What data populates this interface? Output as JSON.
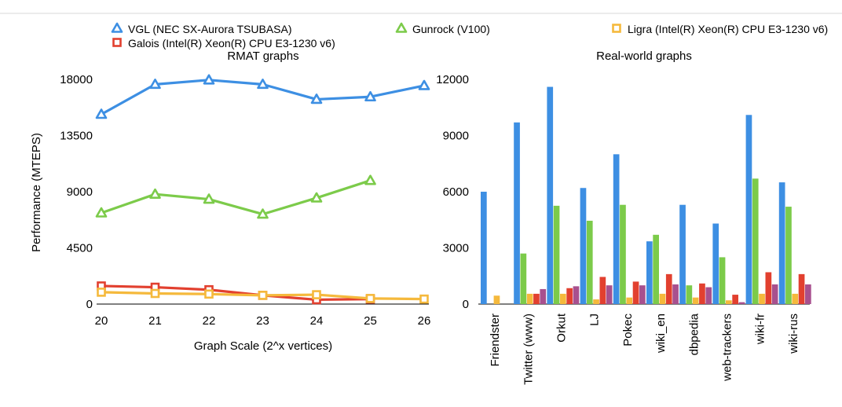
{
  "legend": {
    "items": [
      {
        "label": "VGL (NEC SX-Aurora TSUBASA)",
        "color": "#3d8fe3",
        "marker": "triangle"
      },
      {
        "label": "Gunrock (V100)",
        "color": "#7ccb4a",
        "marker": "triangle"
      },
      {
        "label": "Ligra (Intel(R) Xeon(R) CPU E3-1230 v6)",
        "color": "#f5b93c",
        "marker": "square"
      },
      {
        "label": "Galois (Intel(R) Xeon(R) CPU E3-1230 v6)",
        "color": "#e2402f",
        "marker": "square"
      }
    ]
  },
  "chart_data": [
    {
      "type": "line",
      "title": "RMAT graphs",
      "xlabel": "Graph Scale (2^x vertices)",
      "ylabel": "Performance (MTEPS)",
      "x": [
        20,
        21,
        22,
        23,
        24,
        25,
        26
      ],
      "xticks": [
        "20",
        "21",
        "22",
        "23",
        "24",
        "25",
        "26"
      ],
      "ylim": [
        0,
        18000
      ],
      "yticks": [
        "0",
        "4500",
        "9000",
        "13500",
        "18000"
      ],
      "grid": false,
      "series": [
        {
          "name": "VGL (NEC SX-Aurora TSUBASA)",
          "color": "#3d8fe3",
          "marker": "triangle",
          "values": [
            15200,
            17600,
            17950,
            17600,
            16400,
            16600,
            17500
          ]
        },
        {
          "name": "Gunrock (V100)",
          "color": "#7ccb4a",
          "marker": "triangle",
          "values": [
            7300,
            8800,
            8400,
            7200,
            8500,
            9900,
            null
          ]
        },
        {
          "name": "Galois (Intel(R) Xeon(R) CPU E3-1230 v6)",
          "color": "#e2402f",
          "marker": "square",
          "values": [
            1450,
            1350,
            1150,
            700,
            350,
            400,
            null
          ]
        },
        {
          "name": "Ligra (Intel(R) Xeon(R) CPU E3-1230 v6)",
          "color": "#f5b93c",
          "marker": "square",
          "values": [
            950,
            850,
            800,
            700,
            750,
            450,
            400
          ]
        }
      ]
    },
    {
      "type": "bar",
      "title": "Real-world graphs",
      "categories": [
        "Friendster",
        "Twitter (www)",
        "Orkut",
        "LJ",
        "Pokec",
        "wiki_en",
        "dbpedia",
        "web-trackers",
        "wiki-fr",
        "wiki-rus"
      ],
      "ylim": [
        0,
        12000
      ],
      "yticks": [
        "0",
        "3000",
        "6000",
        "9000",
        "12000"
      ],
      "grid": false,
      "series": [
        {
          "color": "#3d8fe3",
          "values": [
            6000,
            9700,
            11600,
            6200,
            8000,
            3350,
            5300,
            4300,
            10100,
            6500
          ]
        },
        {
          "color": "#7ccb4a",
          "values": [
            0,
            2700,
            5250,
            4450,
            5300,
            3700,
            1000,
            2500,
            6700,
            5200
          ]
        },
        {
          "color": "#f5b93c",
          "values": [
            450,
            550,
            550,
            250,
            350,
            550,
            350,
            200,
            550,
            550
          ]
        },
        {
          "color": "#e2402f",
          "values": [
            0,
            550,
            850,
            1450,
            1200,
            1600,
            1100,
            500,
            1700,
            1600
          ]
        },
        {
          "color": "#a8508e",
          "values": [
            0,
            800,
            950,
            1000,
            1000,
            1050,
            900,
            100,
            1050,
            1050
          ]
        }
      ]
    }
  ]
}
